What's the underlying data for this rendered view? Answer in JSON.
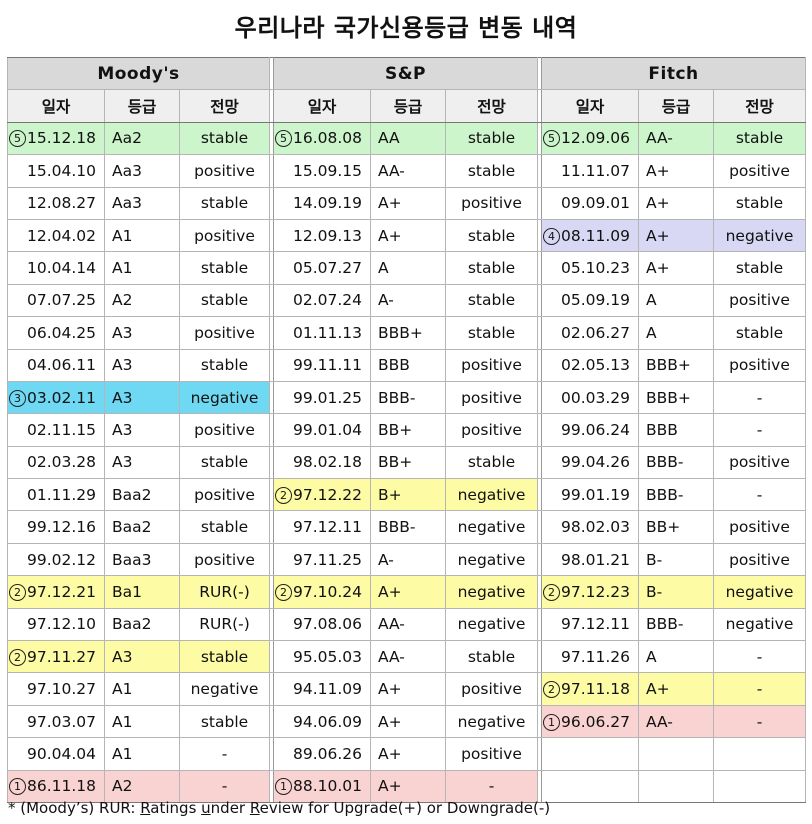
{
  "title": "우리나라 국가신용등급 변동 내역",
  "headers": {
    "agencies": [
      "Moody's",
      "S&P",
      "Fitch"
    ],
    "columns": [
      "일자",
      "등급",
      "전망"
    ]
  },
  "colors": {
    "green": "#ccf5cc",
    "yellow": "#fdfba4",
    "cyan": "#6fd8f3",
    "lavender": "#d8d8f4",
    "pink": "#f9d2d2"
  },
  "moodys": [
    {
      "mark": "5",
      "date": "15.12.18",
      "rating": "Aa2",
      "outlook": "stable",
      "hl": "green"
    },
    {
      "date": "15.04.10",
      "rating": "Aa3",
      "outlook": "positive"
    },
    {
      "date": "12.08.27",
      "rating": "Aa3",
      "outlook": "stable"
    },
    {
      "date": "12.04.02",
      "rating": "A1",
      "outlook": "positive"
    },
    {
      "date": "10.04.14",
      "rating": "A1",
      "outlook": "stable"
    },
    {
      "date": "07.07.25",
      "rating": "A2",
      "outlook": "stable"
    },
    {
      "date": "06.04.25",
      "rating": "A3",
      "outlook": "positive"
    },
    {
      "date": "04.06.11",
      "rating": "A3",
      "outlook": "stable"
    },
    {
      "mark": "3",
      "date": "03.02.11",
      "rating": "A3",
      "outlook": "negative",
      "hl": "cyan"
    },
    {
      "date": "02.11.15",
      "rating": "A3",
      "outlook": "positive"
    },
    {
      "date": "02.03.28",
      "rating": "A3",
      "outlook": "stable"
    },
    {
      "date": "01.11.29",
      "rating": "Baa2",
      "outlook": "positive"
    },
    {
      "date": "99.12.16",
      "rating": "Baa2",
      "outlook": "stable"
    },
    {
      "date": "99.02.12",
      "rating": "Baa3",
      "outlook": "positive"
    },
    {
      "mark": "2",
      "date": "97.12.21",
      "rating": "Ba1",
      "outlook": "RUR(-)",
      "hl": "yellow"
    },
    {
      "date": "97.12.10",
      "rating": "Baa2",
      "outlook": "RUR(-)"
    },
    {
      "mark": "2",
      "date": "97.11.27",
      "rating": "A3",
      "outlook": "stable",
      "hl": "yellow"
    },
    {
      "date": "97.10.27",
      "rating": "A1",
      "outlook": "negative"
    },
    {
      "date": "97.03.07",
      "rating": "A1",
      "outlook": "stable"
    },
    {
      "date": "90.04.04",
      "rating": "A1",
      "outlook": "-"
    },
    {
      "mark": "1",
      "date": "86.11.18",
      "rating": "A2",
      "outlook": "-",
      "hl": "pink"
    }
  ],
  "sp": [
    {
      "mark": "5",
      "date": "16.08.08",
      "rating": "AA",
      "outlook": "stable",
      "hl": "green"
    },
    {
      "date": "15.09.15",
      "rating": "AA-",
      "outlook": "stable"
    },
    {
      "date": "14.09.19",
      "rating": "A+",
      "outlook": "positive"
    },
    {
      "date": "12.09.13",
      "rating": "A+",
      "outlook": "stable"
    },
    {
      "date": "05.07.27",
      "rating": "A",
      "outlook": "stable"
    },
    {
      "date": "02.07.24",
      "rating": "A-",
      "outlook": "stable"
    },
    {
      "date": "01.11.13",
      "rating": "BBB+",
      "outlook": "stable"
    },
    {
      "date": "99.11.11",
      "rating": "BBB",
      "outlook": "positive"
    },
    {
      "date": "99.01.25",
      "rating": "BBB-",
      "outlook": "positive"
    },
    {
      "date": "99.01.04",
      "rating": "BB+",
      "outlook": "positive"
    },
    {
      "date": "98.02.18",
      "rating": "BB+",
      "outlook": "stable"
    },
    {
      "mark": "2",
      "date": "97.12.22",
      "rating": "B+",
      "outlook": "negative",
      "hl": "yellow"
    },
    {
      "date": "97.12.11",
      "rating": "BBB-",
      "outlook": "negative"
    },
    {
      "date": "97.11.25",
      "rating": "A-",
      "outlook": "negative"
    },
    {
      "mark": "2",
      "date": "97.10.24",
      "rating": "A+",
      "outlook": "negative",
      "hl": "yellow"
    },
    {
      "date": "97.08.06",
      "rating": "AA-",
      "outlook": "negative"
    },
    {
      "date": "95.05.03",
      "rating": "AA-",
      "outlook": "stable"
    },
    {
      "date": "94.11.09",
      "rating": "A+",
      "outlook": "positive"
    },
    {
      "date": "94.06.09",
      "rating": "A+",
      "outlook": "negative"
    },
    {
      "date": "89.06.26",
      "rating": "A+",
      "outlook": "positive"
    },
    {
      "mark": "1",
      "date": "88.10.01",
      "rating": "A+",
      "outlook": "-",
      "hl": "pink"
    }
  ],
  "fitch": [
    {
      "mark": "5",
      "date": "12.09.06",
      "rating": "AA-",
      "outlook": "stable",
      "hl": "green"
    },
    {
      "date": "11.11.07",
      "rating": "A+",
      "outlook": "positive"
    },
    {
      "date": "09.09.01",
      "rating": "A+",
      "outlook": "stable"
    },
    {
      "mark": "4",
      "date": "08.11.09",
      "rating": "A+",
      "outlook": "negative",
      "hl": "lavender"
    },
    {
      "date": "05.10.23",
      "rating": "A+",
      "outlook": "stable"
    },
    {
      "date": "05.09.19",
      "rating": "A",
      "outlook": "positive"
    },
    {
      "date": "02.06.27",
      "rating": "A",
      "outlook": "stable"
    },
    {
      "date": "02.05.13",
      "rating": "BBB+",
      "outlook": "positive"
    },
    {
      "date": "00.03.29",
      "rating": "BBB+",
      "outlook": "-"
    },
    {
      "date": "99.06.24",
      "rating": "BBB",
      "outlook": "-"
    },
    {
      "date": "99.04.26",
      "rating": "BBB-",
      "outlook": "positive"
    },
    {
      "date": "99.01.19",
      "rating": "BBB-",
      "outlook": "-"
    },
    {
      "date": "98.02.03",
      "rating": "BB+",
      "outlook": "positive"
    },
    {
      "date": "98.01.21",
      "rating": "B-",
      "outlook": "positive"
    },
    {
      "mark": "2",
      "date": "97.12.23",
      "rating": "B-",
      "outlook": "negative",
      "hl": "yellow"
    },
    {
      "date": "97.12.11",
      "rating": "BBB-",
      "outlook": "negative"
    },
    {
      "date": "97.11.26",
      "rating": "A",
      "outlook": "-"
    },
    {
      "mark": "2",
      "date": "97.11.18",
      "rating": "A+",
      "outlook": "-",
      "hl": "yellow"
    },
    {
      "mark": "1",
      "date": "96.06.27",
      "rating": "AA-",
      "outlook": "-",
      "hl": "pink"
    }
  ],
  "footnote": {
    "lead": "*  (Moody’s)  RUR:  ",
    "r1": "R",
    "w1": "atings ",
    "u2": "u",
    "w2": "nder ",
    "r3": "R",
    "w3": "eview for Upgrade(+) or Downgrade(-)"
  }
}
